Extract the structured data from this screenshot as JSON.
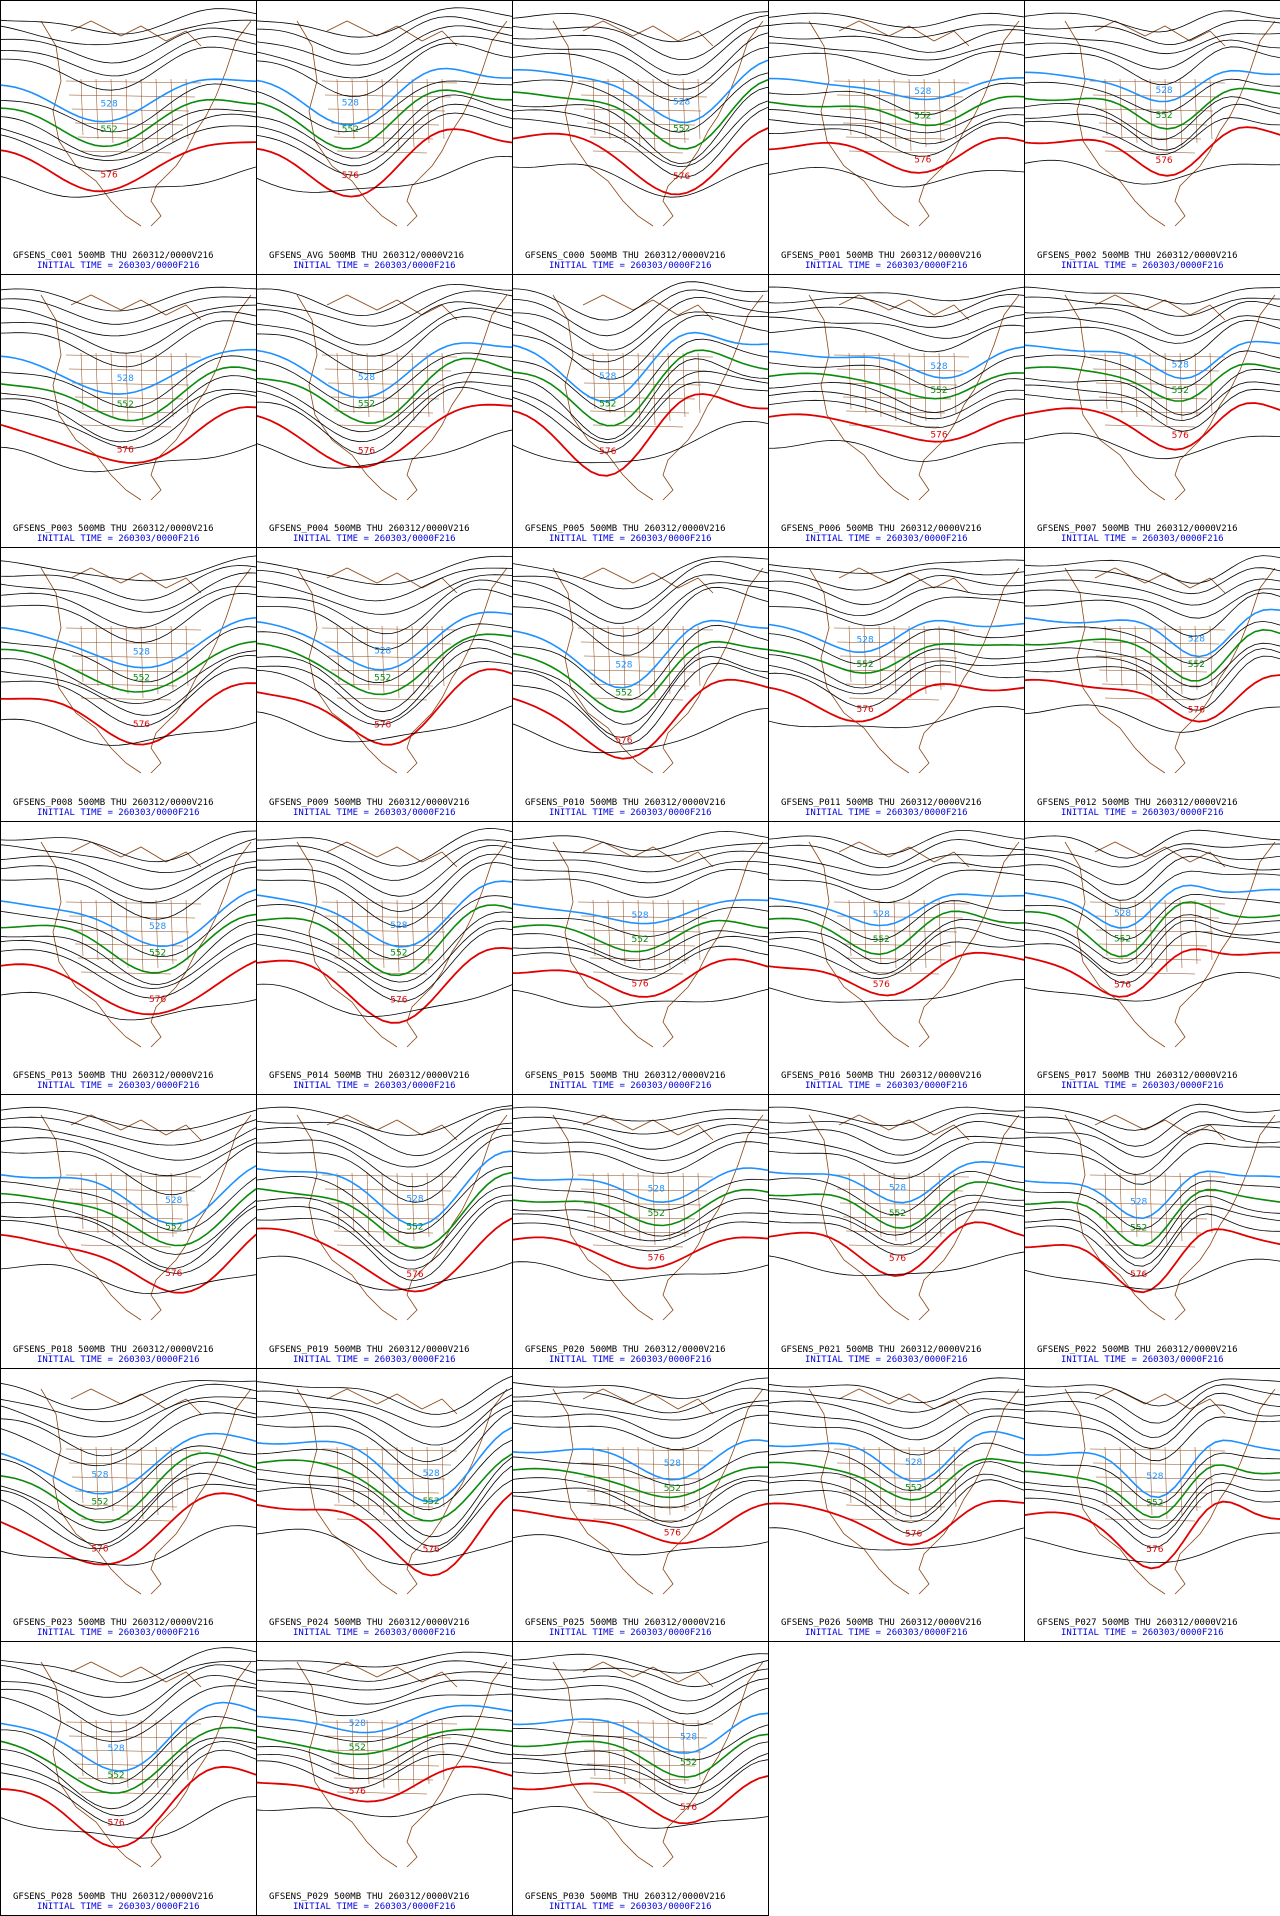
{
  "meta": {
    "colors": {
      "map": "#8b4513",
      "contour": "#000000",
      "contour_blue": "#1e90ff",
      "contour_green": "#0a8a0a",
      "contour_red": "#e00000",
      "title_text": "#000000",
      "time_text": "#0000e0"
    },
    "contour_labels": {
      "blue": "528",
      "green": "552",
      "red": "576"
    }
  },
  "panels": [
    {
      "id": "C001",
      "title": "GFSENS_C001 500MB THU 260312/0000V216",
      "time": "INITIAL TIME = 260303/0000F216"
    },
    {
      "id": "AVG",
      "title": "GFSENS_AVG 500MB THU 260312/0000V216",
      "time": "INITIAL TIME = 260303/0000F216"
    },
    {
      "id": "C000",
      "title": "GFSENS_C000 500MB THU 260312/0000V216",
      "time": "INITIAL TIME = 260303/0000F216"
    },
    {
      "id": "P001",
      "title": "GFSENS_P001 500MB THU 260312/0000V216",
      "time": "INITIAL TIME = 260303/0000F216"
    },
    {
      "id": "P002",
      "title": "GFSENS_P002 500MB THU 260312/0000V216",
      "time": "INITIAL TIME = 260303/0000F216"
    },
    {
      "id": "P003",
      "title": "GFSENS_P003 500MB THU 260312/0000V216",
      "time": "INITIAL TIME = 260303/0000F216"
    },
    {
      "id": "P004",
      "title": "GFSENS_P004 500MB THU 260312/0000V216",
      "time": "INITIAL TIME = 260303/0000F216"
    },
    {
      "id": "P005",
      "title": "GFSENS_P005 500MB THU 260312/0000V216",
      "time": "INITIAL TIME = 260303/0000F216"
    },
    {
      "id": "P006",
      "title": "GFSENS_P006 500MB THU 260312/0000V216",
      "time": "INITIAL TIME = 260303/0000F216"
    },
    {
      "id": "P007",
      "title": "GFSENS_P007 500MB THU 260312/0000V216",
      "time": "INITIAL TIME = 260303/0000F216"
    },
    {
      "id": "P008",
      "title": "GFSENS_P008 500MB THU 260312/0000V216",
      "time": "INITIAL TIME = 260303/0000F216"
    },
    {
      "id": "P009",
      "title": "GFSENS_P009 500MB THU 260312/0000V216",
      "time": "INITIAL TIME = 260303/0000F216"
    },
    {
      "id": "P010",
      "title": "GFSENS_P010 500MB THU 260312/0000V216",
      "time": "INITIAL TIME = 260303/0000F216"
    },
    {
      "id": "P011",
      "title": "GFSENS_P011 500MB THU 260312/0000V216",
      "time": "INITIAL TIME = 260303/0000F216"
    },
    {
      "id": "P012",
      "title": "GFSENS_P012 500MB THU 260312/0000V216",
      "time": "INITIAL TIME = 260303/0000F216"
    },
    {
      "id": "P013",
      "title": "GFSENS_P013 500MB THU 260312/0000V216",
      "time": "INITIAL TIME = 260303/0000F216"
    },
    {
      "id": "P014",
      "title": "GFSENS_P014 500MB THU 260312/0000V216",
      "time": "INITIAL TIME = 260303/0000F216"
    },
    {
      "id": "P015",
      "title": "GFSENS_P015 500MB THU 260312/0000V216",
      "time": "INITIAL TIME = 260303/0000F216"
    },
    {
      "id": "P016",
      "title": "GFSENS_P016 500MB THU 260312/0000V216",
      "time": "INITIAL TIME = 260303/0000F216"
    },
    {
      "id": "P017",
      "title": "GFSENS_P017 500MB THU 260312/0000V216",
      "time": "INITIAL TIME = 260303/0000F216"
    },
    {
      "id": "P018",
      "title": "GFSENS_P018 500MB THU 260312/0000V216",
      "time": "INITIAL TIME = 260303/0000F216"
    },
    {
      "id": "P019",
      "title": "GFSENS_P019 500MB THU 260312/0000V216",
      "time": "INITIAL TIME = 260303/0000F216"
    },
    {
      "id": "P020",
      "title": "GFSENS_P020 500MB THU 260312/0000V216",
      "time": "INITIAL TIME = 260303/0000F216"
    },
    {
      "id": "P021",
      "title": "GFSENS_P021 500MB THU 260312/0000V216",
      "time": "INITIAL TIME = 260303/0000F216"
    },
    {
      "id": "P022",
      "title": "GFSENS_P022 500MB THU 260312/0000V216",
      "time": "INITIAL TIME = 260303/0000F216"
    },
    {
      "id": "P023",
      "title": "GFSENS_P023 500MB THU 260312/0000V216",
      "time": "INITIAL TIME = 260303/0000F216"
    },
    {
      "id": "P024",
      "title": "GFSENS_P024 500MB THU 260312/0000V216",
      "time": "INITIAL TIME = 260303/0000F216"
    },
    {
      "id": "P025",
      "title": "GFSENS_P025 500MB THU 260312/0000V216",
      "time": "INITIAL TIME = 260303/0000F216"
    },
    {
      "id": "P026",
      "title": "GFSENS_P026 500MB THU 260312/0000V216",
      "time": "INITIAL TIME = 260303/0000F216"
    },
    {
      "id": "P027",
      "title": "GFSENS_P027 500MB THU 260312/0000V216",
      "time": "INITIAL TIME = 260303/0000F216"
    },
    {
      "id": "P028",
      "title": "GFSENS_P028 500MB THU 260312/0000V216",
      "time": "INITIAL TIME = 260303/0000F216"
    },
    {
      "id": "P029",
      "title": "GFSENS_P029 500MB THU 260312/0000V216",
      "time": "INITIAL TIME = 260303/0000F216"
    },
    {
      "id": "P030",
      "title": "GFSENS_P030 500MB THU 260312/0000V216",
      "time": "INITIAL TIME = 260303/0000F216"
    }
  ]
}
